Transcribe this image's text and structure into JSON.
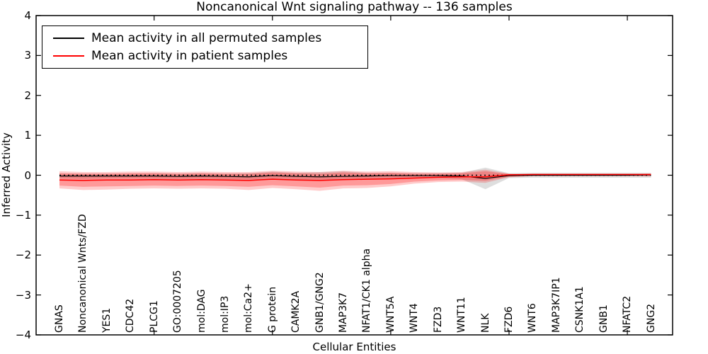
{
  "title": "Noncanonical Wnt signaling pathway -- 136 samples",
  "axes": {
    "ylabel": "Inferred Activity",
    "xlabel": "Cellular Entities",
    "ytick_values": [
      4,
      3,
      2,
      1,
      0,
      -1,
      -2,
      -3,
      -4
    ],
    "ytick_labels": [
      "4",
      "3",
      "2",
      "1",
      "0",
      "−1",
      "−2",
      "−3",
      "−4"
    ],
    "ylim": [
      -4,
      4
    ]
  },
  "legend": {
    "entries": [
      {
        "label": "Mean activity in all permuted samples",
        "color": "#000000"
      },
      {
        "label": "Mean activity in patient samples",
        "color": "#ff0000"
      }
    ]
  },
  "chart_data": {
    "type": "line",
    "title": "Noncanonical Wnt signaling pathway -- 136 samples",
    "xlabel": "Cellular Entities",
    "ylabel": "Inferred Activity",
    "ylim": [
      -4,
      4
    ],
    "grid": false,
    "legend_position": "upper left",
    "categories": [
      "GNAS",
      "Noncanonical Wnts/FZD",
      "YES1",
      "CDC42",
      "PLCG1",
      "GO:0007205",
      "mol:DAG",
      "mol:IP3",
      "mol:Ca2+",
      "G protein",
      "CAMK2A",
      "GNB1/GNG2",
      "MAP3K7",
      "NFAT1/CK1 alpha",
      "WNT5A",
      "WNT4",
      "FZD3",
      "WNT11",
      "NLK",
      "FZD6",
      "WNT6",
      "MAP3K7IP1",
      "CSNK1A1",
      "GNB1",
      "NFATC2",
      "GNG2"
    ],
    "zero_line": {
      "show": true,
      "color": "#000000",
      "style": "dotted",
      "value": 0
    },
    "series": [
      {
        "name": "Mean activity in all permuted samples",
        "color": "#000000",
        "values": [
          -0.02,
          -0.02,
          -0.02,
          -0.02,
          -0.02,
          -0.03,
          -0.02,
          -0.03,
          -0.04,
          -0.01,
          -0.03,
          -0.04,
          -0.03,
          -0.02,
          -0.01,
          -0.01,
          -0.01,
          -0.02,
          -0.08,
          -0.01,
          0,
          0,
          0,
          0,
          0,
          0.01
        ]
      },
      {
        "name": "Mean activity in patient samples",
        "color": "#ff0000",
        "values": [
          -0.12,
          -0.13,
          -0.12,
          -0.12,
          -0.11,
          -0.12,
          -0.11,
          -0.12,
          -0.13,
          -0.1,
          -0.12,
          -0.13,
          -0.11,
          -0.1,
          -0.09,
          -0.07,
          -0.05,
          -0.04,
          -0.04,
          0.01,
          0.02,
          0.02,
          0.02,
          0.02,
          0.02,
          0.02
        ]
      }
    ],
    "bands": [
      {
        "name": "permuted-samples-std-band",
        "color": "rgba(0,0,0,0.13)",
        "upper": [
          0.04,
          0.04,
          0.04,
          0.04,
          0.05,
          0.04,
          0.05,
          0.04,
          0.05,
          0.09,
          0.06,
          0.08,
          0.1,
          0.06,
          0.06,
          0.05,
          0.05,
          0.06,
          0.19,
          0.05,
          0.06,
          0.06,
          0.06,
          0.06,
          0.06,
          0.06
        ],
        "lower": [
          -0.08,
          -0.09,
          -0.08,
          -0.08,
          -0.09,
          -0.09,
          -0.09,
          -0.1,
          -0.11,
          -0.1,
          -0.11,
          -0.13,
          -0.12,
          -0.09,
          -0.08,
          -0.07,
          -0.07,
          -0.1,
          -0.35,
          -0.07,
          -0.06,
          -0.06,
          -0.06,
          -0.06,
          -0.06,
          -0.06
        ]
      },
      {
        "name": "patient-samples-std-band-outer",
        "color": "rgba(255,0,0,0.20)",
        "upper": [
          0.1,
          0.08,
          0.08,
          0.09,
          0.09,
          0.08,
          0.09,
          0.08,
          0.08,
          0.11,
          0.09,
          0.08,
          0.11,
          0.09,
          0.1,
          0.08,
          0.07,
          0.08,
          0.14,
          0.04,
          0.03,
          0.03,
          0.03,
          0.03,
          0.03,
          0.04
        ],
        "lower": [
          -0.33,
          -0.37,
          -0.36,
          -0.34,
          -0.33,
          -0.34,
          -0.33,
          -0.34,
          -0.37,
          -0.32,
          -0.35,
          -0.39,
          -0.33,
          -0.32,
          -0.28,
          -0.21,
          -0.17,
          -0.16,
          -0.19,
          -0.05,
          -0.02,
          -0.02,
          -0.02,
          -0.02,
          -0.02,
          -0.03
        ]
      },
      {
        "name": "patient-samples-std-band-inner",
        "color": "rgba(255,0,0,0.25)",
        "upper": [
          0.05,
          0.04,
          0.04,
          0.05,
          0.05,
          0.04,
          0.05,
          0.04,
          0.04,
          0.07,
          0.05,
          0.04,
          0.07,
          0.05,
          0.06,
          0.04,
          0.04,
          0.05,
          0.1,
          0.03,
          0.02,
          0.02,
          0.02,
          0.02,
          0.02,
          0.03
        ],
        "lower": [
          -0.26,
          -0.29,
          -0.28,
          -0.27,
          -0.26,
          -0.27,
          -0.26,
          -0.27,
          -0.29,
          -0.25,
          -0.28,
          -0.31,
          -0.26,
          -0.25,
          -0.22,
          -0.16,
          -0.13,
          -0.12,
          -0.14,
          -0.04,
          -0.02,
          -0.02,
          -0.02,
          -0.02,
          -0.02,
          -0.02
        ]
      }
    ]
  }
}
